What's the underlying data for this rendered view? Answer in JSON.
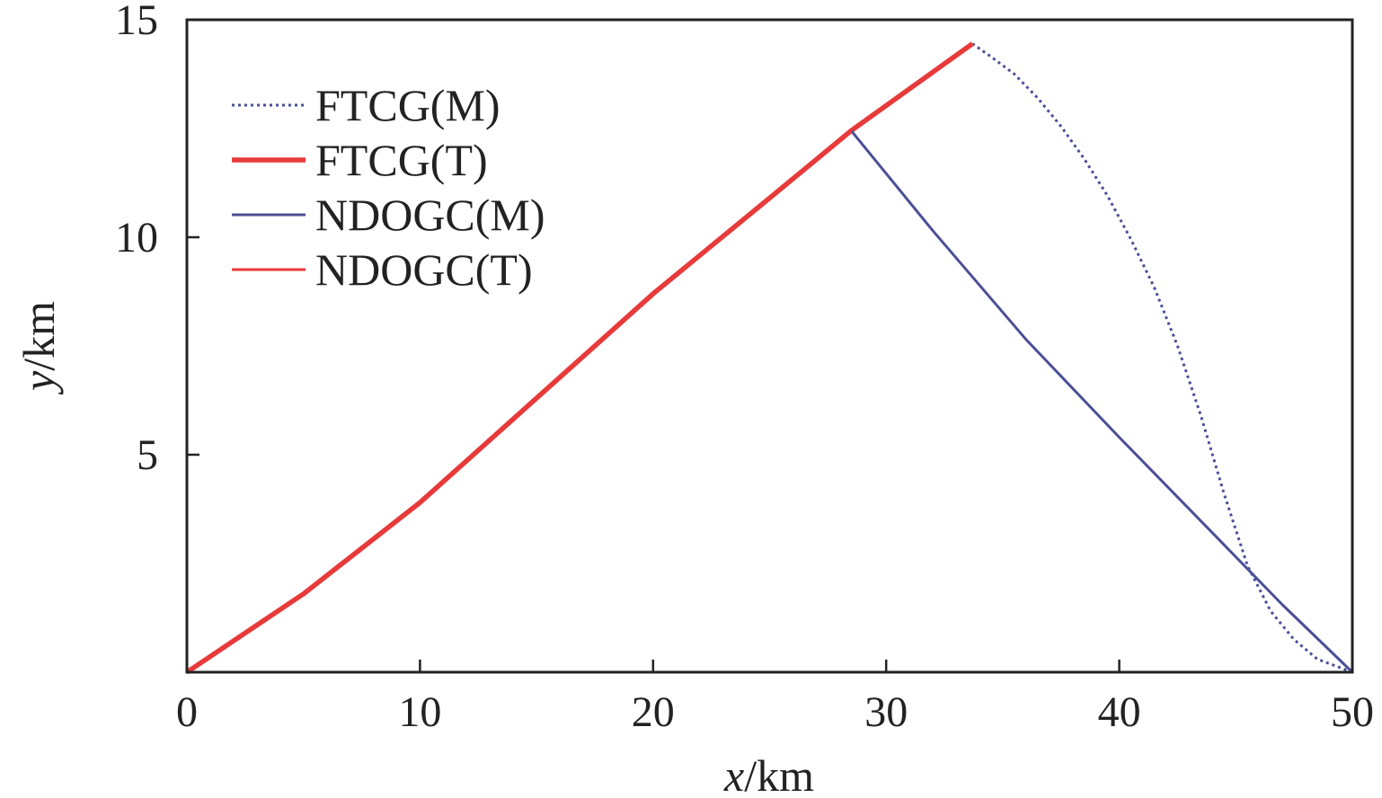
{
  "chart_data": {
    "type": "line",
    "title": "",
    "xlabel": {
      "var": "x",
      "unit": "/km"
    },
    "ylabel": {
      "var": "y",
      "unit": "/km"
    },
    "xlim": [
      0,
      50
    ],
    "ylim": [
      0,
      15
    ],
    "xticks": [
      0,
      10,
      20,
      30,
      40,
      50
    ],
    "yticks": [
      5,
      10,
      15
    ],
    "grid": false,
    "legend": "top-left",
    "series": [
      {
        "name": "FTCG(M)",
        "color": "#4a4f96",
        "style": "dotted",
        "points": [
          [
            33.7,
            14.45
          ],
          [
            34.5,
            14.15
          ],
          [
            35.5,
            13.75
          ],
          [
            36.5,
            13.2
          ],
          [
            37.5,
            12.55
          ],
          [
            38.5,
            11.8
          ],
          [
            39.5,
            10.95
          ],
          [
            40.5,
            9.95
          ],
          [
            41.5,
            8.85
          ],
          [
            42.5,
            7.5
          ],
          [
            43.5,
            5.9
          ],
          [
            44.5,
            4.1
          ],
          [
            45.5,
            2.45
          ],
          [
            46.5,
            1.4
          ],
          [
            47.5,
            0.75
          ],
          [
            48.5,
            0.3
          ],
          [
            50,
            0
          ]
        ]
      },
      {
        "name": "FTCG(T)",
        "color": "#e83a3a",
        "style": "thick",
        "points": [
          [
            0,
            0
          ],
          [
            5,
            1.8
          ],
          [
            10,
            3.9
          ],
          [
            15,
            6.3
          ],
          [
            20,
            8.7
          ],
          [
            25,
            10.9
          ],
          [
            28.5,
            12.45
          ],
          [
            33.7,
            14.45
          ]
        ]
      },
      {
        "name": "NDOGC(M)",
        "color": "#4a4f96",
        "style": "solid",
        "points": [
          [
            28.5,
            12.45
          ],
          [
            32,
            10.15
          ],
          [
            36,
            7.65
          ],
          [
            40,
            5.4
          ],
          [
            44,
            3.2
          ],
          [
            47,
            1.55
          ],
          [
            50,
            0
          ]
        ]
      },
      {
        "name": "NDOGC(T)",
        "color": "#e83a3a",
        "style": "solid",
        "points": [
          [
            0,
            0
          ],
          [
            5,
            1.8
          ],
          [
            10,
            3.9
          ],
          [
            15,
            6.3
          ],
          [
            20,
            8.7
          ],
          [
            25,
            10.9
          ],
          [
            28.5,
            12.45
          ]
        ]
      }
    ]
  }
}
